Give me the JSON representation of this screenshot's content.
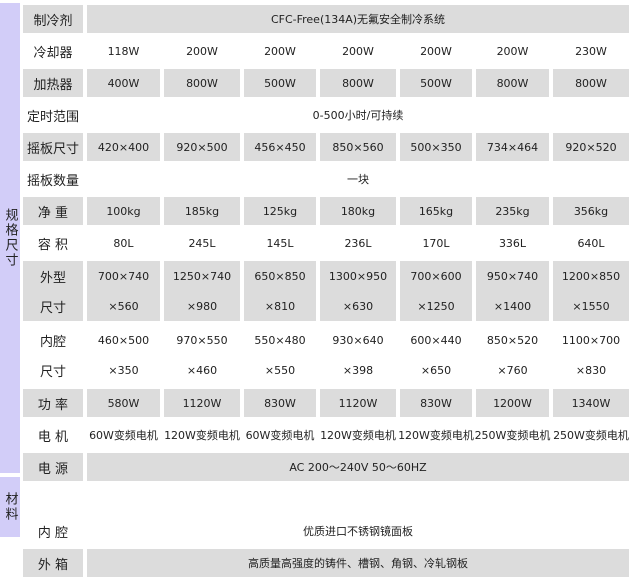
{
  "groups": [
    {
      "label": "规格尺寸"
    },
    {
      "label": "材料"
    }
  ],
  "colors": {
    "group_bg": "#d2cdf8",
    "cell_gray": "#dcdcdc"
  },
  "rows": [
    {
      "label": "制冷剂",
      "gray": true,
      "span": "CFC-Free(134A)无氟安全制冷系统"
    },
    {
      "label": "冷却器",
      "gray": false,
      "values": [
        "118W",
        "200W",
        "200W",
        "200W",
        "200W",
        "200W",
        "230W"
      ]
    },
    {
      "label": "加热器",
      "gray": true,
      "values": [
        "400W",
        "800W",
        "500W",
        "800W",
        "500W",
        "800W",
        "800W"
      ]
    },
    {
      "label": "定时范围",
      "gray": false,
      "span": "0-500小时/可持续"
    },
    {
      "label": "摇板尺寸",
      "gray": true,
      "values": [
        "420×400",
        "920×500",
        "456×450",
        "850×560",
        "500×350",
        "734×464",
        "920×520"
      ]
    },
    {
      "label": "摇板数量",
      "gray": false,
      "span": "一块"
    },
    {
      "label": "净 重",
      "gray": true,
      "values": [
        "100kg",
        "185kg",
        "125kg",
        "180kg",
        "165kg",
        "235kg",
        "356kg"
      ]
    },
    {
      "label": "容 积",
      "gray": false,
      "values": [
        "80L",
        "245L",
        "145L",
        "236L",
        "170L",
        "336L",
        "640L"
      ]
    },
    {
      "label": [
        "外型",
        "尺寸"
      ],
      "gray": true,
      "double": true,
      "values": [
        [
          "700×740",
          "×560"
        ],
        [
          "1250×740",
          "×980"
        ],
        [
          "650×850",
          "×810"
        ],
        [
          "1300×950",
          "×630"
        ],
        [
          "700×600",
          "×1250"
        ],
        [
          "950×740",
          "×1400"
        ],
        [
          "1200×850",
          "×1550"
        ]
      ]
    },
    {
      "label": [
        "内腔",
        "尺寸"
      ],
      "gray": false,
      "double": true,
      "values": [
        [
          "460×500",
          "×350"
        ],
        [
          "970×550",
          "×460"
        ],
        [
          "550×480",
          "×550"
        ],
        [
          "930×640",
          "×398"
        ],
        [
          "600×440",
          "×650"
        ],
        [
          "850×520",
          "×760"
        ],
        [
          "1100×700",
          "×830"
        ]
      ]
    },
    {
      "label": "功 率",
      "gray": true,
      "values": [
        "580W",
        "1120W",
        "830W",
        "1120W",
        "830W",
        "1200W",
        "1340W"
      ]
    },
    {
      "label": "电 机",
      "gray": false,
      "values": [
        "60W变频电机",
        "120W变频电机",
        "60W变频电机",
        "120W变频电机",
        "120W变频电机",
        "250W变频电机",
        "250W变频电机"
      ]
    },
    {
      "label": "电 源",
      "gray": true,
      "span": "AC 200～240V  50～60HZ"
    },
    {
      "label": "内 腔",
      "gray": false,
      "span": "优质进口不锈钢镜面板",
      "gap": true
    },
    {
      "label": "外 箱",
      "gray": true,
      "span": "高质量高强度的铸件、槽钢、角钢、冷轧钢板"
    }
  ]
}
